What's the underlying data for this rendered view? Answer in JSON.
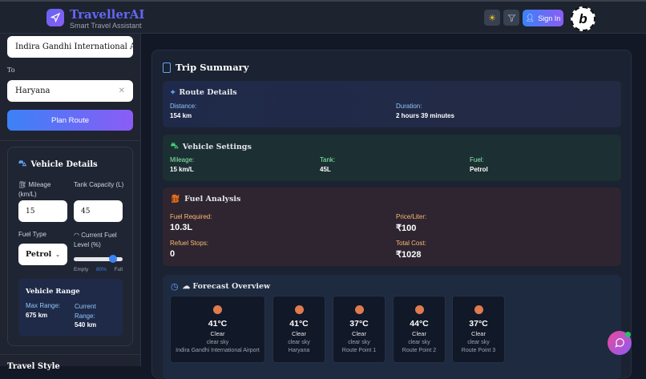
{
  "header": {
    "brand": "TravellerAI",
    "tagline": "Smart Travel Assistant",
    "sign_in": "Sign In",
    "badge_letter": "b"
  },
  "sidebar": {
    "from_value": "Indira Gandhi International Airport",
    "to_label": "To",
    "to_value": "Haryana",
    "plan_route": "Plan Route",
    "vehicle": {
      "title": "Vehicle Details",
      "mileage_label": "Mileage (km/L)",
      "mileage_value": "15",
      "tank_label": "Tank Capacity (L)",
      "tank_value": "45",
      "fuel_type_label": "Fuel Type",
      "fuel_type_value": "Petrol",
      "fuel_level_label": "Current Fuel Level (%)",
      "fuel_level_percent": 80,
      "fuel_level_text": "80%",
      "empty": "Empty",
      "full": "Full",
      "range": {
        "title": "Vehicle Range",
        "max_label": "Max Range:",
        "max_value": "675 km",
        "current_label": "Current Range:",
        "current_value": "540 km"
      }
    },
    "next_section": "Travel Style"
  },
  "summary": {
    "title": "Trip Summary",
    "route": {
      "title": "Route Details",
      "distance_label": "Distance:",
      "distance": "154 km",
      "duration_label": "Duration:",
      "duration": "2 hours 39 minutes"
    },
    "vehicle": {
      "title": "Vehicle Settings",
      "mileage_label": "Mileage:",
      "mileage": "15 km/L",
      "tank_label": "Tank:",
      "tank": "45L",
      "fuel_label": "Fuel:",
      "fuel": "Petrol"
    },
    "fuel": {
      "title": "Fuel Analysis",
      "required_label": "Fuel Required:",
      "required": "10.3L",
      "price_label": "Price/Liter:",
      "price": "₹100",
      "stops_label": "Refuel Stops:",
      "stops": "0",
      "cost_label": "Total Cost:",
      "cost": "₹1028"
    },
    "forecast": {
      "title": "☁ Forecast Overview",
      "cards": [
        {
          "temp": "41°C",
          "cond": "Clear",
          "desc": "clear sky",
          "place": "Indira Gandhi International Airport"
        },
        {
          "temp": "41°C",
          "cond": "Clear",
          "desc": "clear sky",
          "place": "Haryana"
        },
        {
          "temp": "37°C",
          "cond": "Clear",
          "desc": "clear sky",
          "place": "Route Point 1"
        },
        {
          "temp": "44°C",
          "cond": "Clear",
          "desc": "clear sky",
          "place": "Route Point 2"
        },
        {
          "temp": "37°C",
          "cond": "Clear",
          "desc": "clear sky",
          "place": "Route Point 3"
        }
      ]
    }
  },
  "colors": {
    "accent": "#6366f1",
    "route_bg": "#1e2a47",
    "vehicle_bg": "#1c2f33",
    "fuel_bg": "#2e2530",
    "sun": "#e07a4f"
  }
}
